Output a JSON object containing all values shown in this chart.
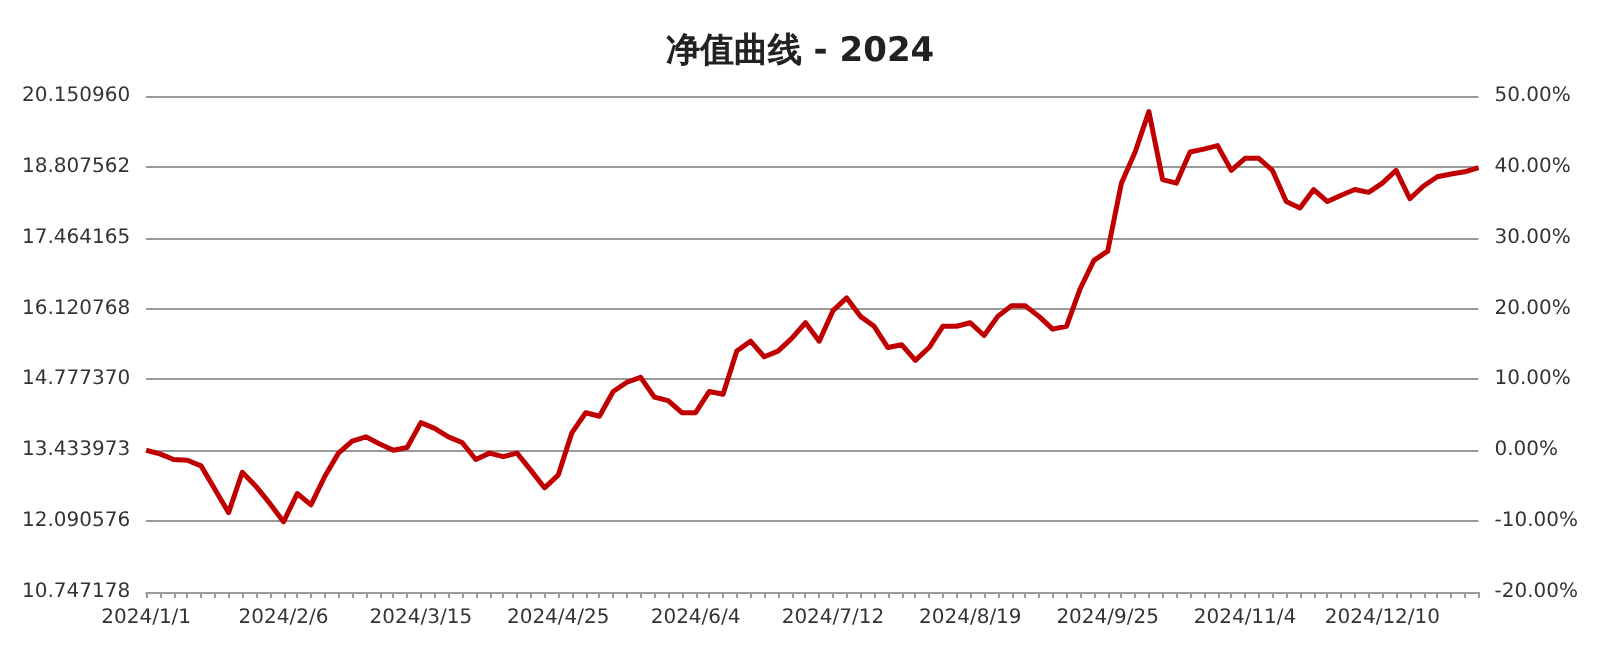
{
  "chart_data": {
    "type": "line",
    "title": "净值曲线 - 2024",
    "categories": [
      "2024/1/1",
      null,
      null,
      null,
      null,
      null,
      null,
      null,
      null,
      null,
      "2024/2/6",
      null,
      null,
      null,
      null,
      null,
      null,
      null,
      null,
      null,
      "2024/3/15",
      null,
      null,
      null,
      null,
      null,
      null,
      null,
      null,
      null,
      "2024/4/25",
      null,
      null,
      null,
      null,
      null,
      null,
      null,
      null,
      null,
      "2024/6/4",
      null,
      null,
      null,
      null,
      null,
      null,
      null,
      null,
      null,
      "2024/7/12",
      null,
      null,
      null,
      null,
      null,
      null,
      null,
      null,
      null,
      "2024/8/19",
      null,
      null,
      null,
      null,
      null,
      null,
      null,
      null,
      null,
      "2024/9/25",
      null,
      null,
      null,
      null,
      null,
      null,
      null,
      null,
      null,
      "2024/11/4",
      null,
      null,
      null,
      null,
      null,
      null,
      null,
      null,
      null,
      "2024/12/10",
      null,
      null,
      null,
      null,
      null,
      null,
      null
    ],
    "series": [
      {
        "color": "#c00000",
        "axis": "y2",
        "values": [
          0,
          -0.5,
          -1.3,
          -1.4,
          -2.2,
          -5.5,
          -8.8,
          -3.1,
          -5.1,
          -7.5,
          -10.1,
          -6.1,
          -7.7,
          -3.7,
          -0.4,
          1.3,
          1.9,
          0.9,
          0,
          0.4,
          3.9,
          3.1,
          1.9,
          1.1,
          -1.3,
          -0.4,
          -0.9,
          -0.4,
          -2.8,
          -5.3,
          -3.5,
          2.5,
          5.3,
          4.8,
          8.3,
          9.6,
          10.3,
          7.5,
          7.0,
          5.3,
          5.3,
          8.3,
          7.9,
          14.0,
          15.4,
          13.2,
          14.0,
          15.8,
          18.0,
          15.4,
          19.7,
          21.5,
          18.9,
          17.5,
          14.5,
          14.9,
          12.7,
          14.5,
          17.5,
          17.5,
          18.0,
          16.2,
          18.9,
          20.4,
          20.4,
          18.9,
          17.1,
          17.5,
          22.8,
          26.8,
          28.1,
          37.7,
          42.1,
          47.8,
          38.2,
          37.7,
          42.1,
          42.5,
          43.0,
          39.5,
          41.2,
          41.2,
          39.5,
          35.1,
          34.2,
          36.8,
          35.1,
          36.0,
          36.8,
          36.4,
          37.7,
          39.5,
          35.5,
          37.3,
          38.6,
          39.0,
          39.3,
          39.9
        ]
      }
    ],
    "ylim": [
      10.747178,
      20.15096
    ],
    "yticks": [
      {
        "value": 10.747178,
        "label": "10.747178"
      },
      {
        "value": 12.090576,
        "label": "12.090576"
      },
      {
        "value": 13.433973,
        "label": "13.433973"
      },
      {
        "value": 14.77737,
        "label": "14.777370"
      },
      {
        "value": 16.120768,
        "label": "16.120768"
      },
      {
        "value": 17.464165,
        "label": "17.464165"
      },
      {
        "value": 18.807562,
        "label": "18.807562"
      },
      {
        "value": 20.15096,
        "label": "20.150960"
      }
    ],
    "y2lim": [
      -20,
      50
    ],
    "y2ticks": [
      {
        "value": -20,
        "label": "-20.00%"
      },
      {
        "value": -10,
        "label": "-10.00%"
      },
      {
        "value": 0,
        "label": "0.00%"
      },
      {
        "value": 10,
        "label": "10.00%"
      },
      {
        "value": 20,
        "label": "20.00%"
      },
      {
        "value": 30,
        "label": "30.00%"
      },
      {
        "value": 40,
        "label": "40.00%"
      },
      {
        "value": 50,
        "label": "50.00%"
      }
    ],
    "grid": "y",
    "marker": "none",
    "line_style": "solid"
  }
}
